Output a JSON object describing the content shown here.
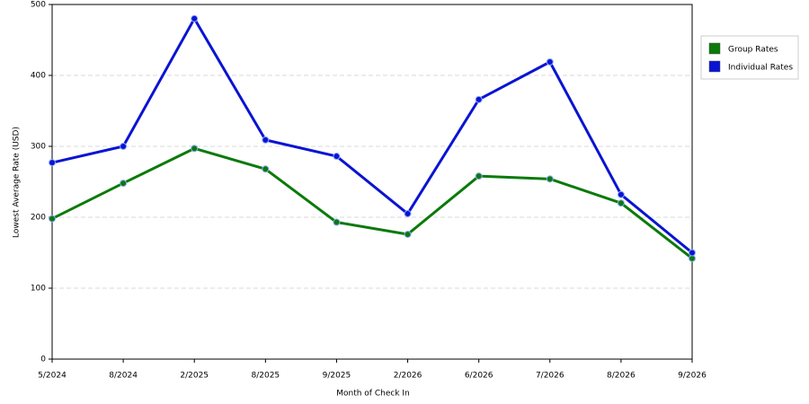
{
  "chart_data": {
    "type": "line",
    "x_label": "Month of Check In",
    "y_label": "Lowest Average Rate (USD)",
    "categories": [
      "5/2024",
      "8/2024",
      "2/2025",
      "8/2025",
      "9/2025",
      "2/2026",
      "6/2026",
      "7/2026",
      "8/2026",
      "9/2026"
    ],
    "series": [
      {
        "name": "Group Rates",
        "color": "#0a7a0a",
        "values": [
          198,
          248,
          297,
          268,
          193,
          176,
          258,
          254,
          220,
          142
        ]
      },
      {
        "name": "Individual Rates",
        "color": "#0a14d2",
        "values": [
          277,
          300,
          480,
          309,
          286,
          205,
          366,
          419,
          232,
          150
        ]
      }
    ],
    "ylim": [
      0,
      500
    ],
    "yticks": [
      0,
      100,
      200,
      300,
      400,
      500
    ],
    "grid": true,
    "legend": "right"
  }
}
